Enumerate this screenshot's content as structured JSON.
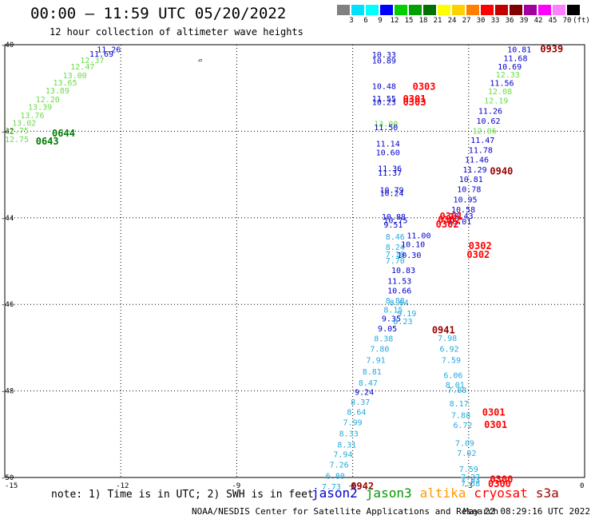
{
  "title": "00:00 – 11:59 UTC 05/20/2022",
  "subtitle": "12 hour collection of altimeter wave heights",
  "legend": {
    "unit": "(ft)",
    "bins": [
      {
        "label": "3",
        "color": "#808080"
      },
      {
        "label": "6",
        "color": "#00e0ff"
      },
      {
        "label": "9",
        "color": "#00ffff"
      },
      {
        "label": "12",
        "color": "#0000ff"
      },
      {
        "label": "15",
        "color": "#00d000"
      },
      {
        "label": "18",
        "color": "#00a000"
      },
      {
        "label": "21",
        "color": "#007000"
      },
      {
        "label": "24",
        "color": "#ffff00"
      },
      {
        "label": "27",
        "color": "#ffd000"
      },
      {
        "label": "30",
        "color": "#ff8000"
      },
      {
        "label": "33",
        "color": "#ff0000"
      },
      {
        "label": "36",
        "color": "#c00000"
      },
      {
        "label": "39",
        "color": "#800000"
      },
      {
        "label": "42",
        "color": "#a000a0"
      },
      {
        "label": "45",
        "color": "#ff00ff"
      },
      {
        "label": "70",
        "color": "#ff80ff"
      },
      {
        "label": "",
        "color": "#000000"
      }
    ]
  },
  "axes": {
    "x_ticks": [
      "-15",
      "-12",
      "-9",
      "-6",
      "-3",
      "0"
    ],
    "y_ticks": [
      "-40",
      "-42",
      "-44",
      "-46",
      "-48",
      "-50"
    ]
  },
  "labels": [
    {
      "lon": -12.62,
      "lat": -40.1,
      "t": "11.26",
      "c": "#0000cc"
    },
    {
      "lon": -12.81,
      "lat": -40.2,
      "t": "11.69",
      "c": "#0000cc"
    },
    {
      "lon": -13.05,
      "lat": -40.35,
      "t": "12.37",
      "c": "#66dd44"
    },
    {
      "lon": -13.3,
      "lat": -40.5,
      "t": "12.47",
      "c": "#66dd44"
    },
    {
      "lon": -13.5,
      "lat": -40.7,
      "t": "13.00",
      "c": "#66dd44"
    },
    {
      "lon": -13.75,
      "lat": -40.87,
      "t": "13.65",
      "c": "#66dd44"
    },
    {
      "lon": -13.95,
      "lat": -41.05,
      "t": "13.89",
      "c": "#66dd44"
    },
    {
      "lon": -14.2,
      "lat": -41.25,
      "t": "12.20",
      "c": "#66dd44"
    },
    {
      "lon": -14.4,
      "lat": -41.43,
      "t": "13.39",
      "c": "#66dd44"
    },
    {
      "lon": -14.6,
      "lat": -41.62,
      "t": "13.76",
      "c": "#66dd44"
    },
    {
      "lon": -14.81,
      "lat": -41.8,
      "t": "13.02",
      "c": "#66dd44"
    },
    {
      "lon": -15.0,
      "lat": -41.97,
      "t": "12.75",
      "c": "#66dd44"
    },
    {
      "lon": -15.0,
      "lat": -42.18,
      "t": "12.75",
      "c": "#66dd44"
    },
    {
      "lon": -5.5,
      "lat": -40.22,
      "t": "10.33",
      "c": "#0000cc"
    },
    {
      "lon": -5.5,
      "lat": -40.36,
      "t": "10.89",
      "c": "#0000cc"
    },
    {
      "lon": -5.5,
      "lat": -40.95,
      "t": "10.48",
      "c": "#0000cc"
    },
    {
      "lon": -5.5,
      "lat": -41.24,
      "t": "11.55",
      "c": "#0000cc"
    },
    {
      "lon": -5.5,
      "lat": -41.32,
      "t": "10.23",
      "c": "#0000cc"
    },
    {
      "lon": -5.45,
      "lat": -41.82,
      "t": "13.00",
      "c": "#66dd44"
    },
    {
      "lon": -5.45,
      "lat": -41.9,
      "t": "11.50",
      "c": "#0000cc"
    },
    {
      "lon": -5.4,
      "lat": -42.28,
      "t": "11.14",
      "c": "#0000cc"
    },
    {
      "lon": -5.4,
      "lat": -42.48,
      "t": "10.60",
      "c": "#0000cc"
    },
    {
      "lon": -5.35,
      "lat": -42.85,
      "t": "11.36",
      "c": "#0000cc"
    },
    {
      "lon": -5.35,
      "lat": -42.95,
      "t": "11.37",
      "c": "#0000cc"
    },
    {
      "lon": -5.3,
      "lat": -43.35,
      "t": "10.79",
      "c": "#0000cc"
    },
    {
      "lon": -5.3,
      "lat": -43.42,
      "t": "10.24",
      "c": "#0000cc"
    },
    {
      "lon": -5.25,
      "lat": -43.97,
      "t": "10.88",
      "c": "#0000cc"
    },
    {
      "lon": -5.2,
      "lat": -44.05,
      "t": "10.75",
      "c": "#0000cc"
    },
    {
      "lon": -5.2,
      "lat": -44.15,
      "t": "9.51",
      "c": "#0000cc"
    },
    {
      "lon": -5.15,
      "lat": -44.43,
      "t": "8.46",
      "c": "#22aadd"
    },
    {
      "lon": -5.15,
      "lat": -44.67,
      "t": "8.24",
      "c": "#22aadd"
    },
    {
      "lon": -5.15,
      "lat": -44.83,
      "t": "7.10",
      "c": "#22aadd"
    },
    {
      "lon": -5.15,
      "lat": -44.98,
      "t": "7.70",
      "c": "#22aadd"
    },
    {
      "lon": -4.6,
      "lat": -44.4,
      "t": "11.00",
      "c": "#0000cc"
    },
    {
      "lon": -4.75,
      "lat": -44.6,
      "t": "10.10",
      "c": "#0000cc"
    },
    {
      "lon": -4.85,
      "lat": -44.85,
      "t": "10.30",
      "c": "#0000cc"
    },
    {
      "lon": -5.0,
      "lat": -45.2,
      "t": "10.83",
      "c": "#0000cc"
    },
    {
      "lon": -5.1,
      "lat": -45.45,
      "t": "11.53",
      "c": "#0000cc"
    },
    {
      "lon": -5.1,
      "lat": -45.67,
      "t": "10.66",
      "c": "#0000cc"
    },
    {
      "lon": -5.15,
      "lat": -45.9,
      "t": "8.88",
      "c": "#22aadd"
    },
    {
      "lon": -5.05,
      "lat": -45.95,
      "t": "8.64",
      "c": "#22aadd"
    },
    {
      "lon": -5.2,
      "lat": -46.12,
      "t": "8.15",
      "c": "#22aadd"
    },
    {
      "lon": -4.85,
      "lat": -46.2,
      "t": "9.19",
      "c": "#22aadd"
    },
    {
      "lon": -5.25,
      "lat": -46.32,
      "t": "9.35",
      "c": "#0000cc"
    },
    {
      "lon": -4.95,
      "lat": -46.38,
      "t": "8.23",
      "c": "#22aadd"
    },
    {
      "lon": -5.35,
      "lat": -46.55,
      "t": "9.05",
      "c": "#0000cc"
    },
    {
      "lon": -5.45,
      "lat": -46.78,
      "t": "8.38",
      "c": "#22aadd"
    },
    {
      "lon": -5.55,
      "lat": -47.02,
      "t": "7.80",
      "c": "#22aadd"
    },
    {
      "lon": -5.65,
      "lat": -47.28,
      "t": "7.91",
      "c": "#22aadd"
    },
    {
      "lon": -5.75,
      "lat": -47.55,
      "t": "8.81",
      "c": "#22aadd"
    },
    {
      "lon": -5.85,
      "lat": -47.8,
      "t": "8.47",
      "c": "#22aadd"
    },
    {
      "lon": -5.95,
      "lat": -48.02,
      "t": "9.24",
      "c": "#0000cc"
    },
    {
      "lon": -6.05,
      "lat": -48.25,
      "t": "8.37",
      "c": "#22aadd"
    },
    {
      "lon": -6.15,
      "lat": -48.48,
      "t": "8.64",
      "c": "#22aadd"
    },
    {
      "lon": -6.25,
      "lat": -48.72,
      "t": "7.99",
      "c": "#22aadd"
    },
    {
      "lon": -6.35,
      "lat": -48.98,
      "t": "8.33",
      "c": "#22aadd"
    },
    {
      "lon": -6.4,
      "lat": -49.23,
      "t": "8.31",
      "c": "#22aadd"
    },
    {
      "lon": -6.5,
      "lat": -49.46,
      "t": "7.94",
      "c": "#22aadd"
    },
    {
      "lon": -6.6,
      "lat": -49.7,
      "t": "7.26",
      "c": "#22aadd"
    },
    {
      "lon": -6.7,
      "lat": -49.95,
      "t": "6.80",
      "c": "#22aadd"
    },
    {
      "lon": -6.8,
      "lat": -50.2,
      "t": "7.73",
      "c": "#22aadd"
    },
    {
      "lon": -3.8,
      "lat": -46.77,
      "t": "7.98",
      "c": "#22aadd"
    },
    {
      "lon": -3.75,
      "lat": -47.02,
      "t": "6.92",
      "c": "#22aadd"
    },
    {
      "lon": -3.7,
      "lat": -47.28,
      "t": "7.59",
      "c": "#22aadd"
    },
    {
      "lon": -3.65,
      "lat": -47.63,
      "t": "6.06",
      "c": "#22aadd"
    },
    {
      "lon": -3.6,
      "lat": -47.85,
      "t": "8.01",
      "c": "#22aadd"
    },
    {
      "lon": -3.55,
      "lat": -47.97,
      "t": "7.88",
      "c": "#22aadd"
    },
    {
      "lon": -3.5,
      "lat": -48.28,
      "t": "8.17",
      "c": "#22aadd"
    },
    {
      "lon": -3.45,
      "lat": -48.55,
      "t": "7.88",
      "c": "#22aadd"
    },
    {
      "lon": -3.4,
      "lat": -48.78,
      "t": "6.72",
      "c": "#22aadd"
    },
    {
      "lon": -3.35,
      "lat": -49.2,
      "t": "7.09",
      "c": "#22aadd"
    },
    {
      "lon": -3.3,
      "lat": -49.43,
      "t": "7.02",
      "c": "#22aadd"
    },
    {
      "lon": -3.25,
      "lat": -49.8,
      "t": "7.59",
      "c": "#22aadd"
    },
    {
      "lon": -3.2,
      "lat": -49.98,
      "t": "7.27",
      "c": "#22aadd"
    },
    {
      "lon": -3.2,
      "lat": -50.05,
      "t": "7.83",
      "c": "#22aadd"
    },
    {
      "lon": -3.2,
      "lat": -50.13,
      "t": "7.58",
      "c": "#22aadd"
    },
    {
      "lon": -2.0,
      "lat": -40.1,
      "t": "10.81",
      "c": "#0000cc"
    },
    {
      "lon": -2.1,
      "lat": -40.3,
      "t": "11.68",
      "c": "#0000cc"
    },
    {
      "lon": -2.25,
      "lat": -40.5,
      "t": "10.69",
      "c": "#0000cc"
    },
    {
      "lon": -2.3,
      "lat": -40.68,
      "t": "12.33",
      "c": "#66dd44"
    },
    {
      "lon": -2.45,
      "lat": -40.88,
      "t": "11.56",
      "c": "#0000cc"
    },
    {
      "lon": -2.5,
      "lat": -41.07,
      "t": "12.08",
      "c": "#66dd44"
    },
    {
      "lon": -2.6,
      "lat": -41.28,
      "t": "12.19",
      "c": "#66dd44"
    },
    {
      "lon": -2.75,
      "lat": -41.52,
      "t": "11.26",
      "c": "#0000cc"
    },
    {
      "lon": -2.8,
      "lat": -41.75,
      "t": "10.62",
      "c": "#0000cc"
    },
    {
      "lon": -2.9,
      "lat": -41.98,
      "t": "12.06",
      "c": "#66dd44"
    },
    {
      "lon": -2.95,
      "lat": -42.2,
      "t": "11.47",
      "c": "#0000cc"
    },
    {
      "lon": -3.0,
      "lat": -42.43,
      "t": "11.78",
      "c": "#0000cc"
    },
    {
      "lon": -3.1,
      "lat": -42.65,
      "t": "11.46",
      "c": "#0000cc"
    },
    {
      "lon": -3.15,
      "lat": -42.88,
      "t": "11.29",
      "c": "#0000cc"
    },
    {
      "lon": -3.25,
      "lat": -43.1,
      "t": "10.81",
      "c": "#0000cc"
    },
    {
      "lon": -3.3,
      "lat": -43.33,
      "t": "10.78",
      "c": "#0000cc"
    },
    {
      "lon": -3.4,
      "lat": -43.57,
      "t": "10.95",
      "c": "#0000cc"
    },
    {
      "lon": -3.45,
      "lat": -43.8,
      "t": "10.58",
      "c": "#0000cc"
    },
    {
      "lon": -3.5,
      "lat": -43.95,
      "t": "10.43",
      "c": "#0000cc"
    },
    {
      "lon": -3.55,
      "lat": -44.08,
      "t": "10.01",
      "c": "#0000cc"
    }
  ],
  "times": [
    {
      "lon": -13.78,
      "lat": -42.05,
      "t": "0644",
      "c": "#007a00"
    },
    {
      "lon": -14.2,
      "lat": -42.23,
      "t": "0643",
      "c": "#007a00"
    },
    {
      "lon": -4.45,
      "lat": -40.97,
      "t": "0303",
      "c": "#ff0000"
    },
    {
      "lon": -4.7,
      "lat": -41.25,
      "t": "0301",
      "c": "#ff0000"
    },
    {
      "lon": -4.7,
      "lat": -41.33,
      "t": "0303",
      "c": "#ff0000"
    },
    {
      "lon": -3.75,
      "lat": -43.97,
      "t": "0301",
      "c": "#ff0000"
    },
    {
      "lon": -3.8,
      "lat": -44.05,
      "t": "0302",
      "c": "#ff0000"
    },
    {
      "lon": -3.85,
      "lat": -44.15,
      "t": "0302",
      "c": "#ff0000"
    },
    {
      "lon": -3.0,
      "lat": -44.65,
      "t": "0302",
      "c": "#ff0000"
    },
    {
      "lon": -3.05,
      "lat": -44.85,
      "t": "0302",
      "c": "#ff0000"
    },
    {
      "lon": -3.95,
      "lat": -46.6,
      "t": "0941",
      "c": "#990000"
    },
    {
      "lon": -2.45,
      "lat": -42.92,
      "t": "0940",
      "c": "#990000"
    },
    {
      "lon": -1.15,
      "lat": -40.1,
      "t": "0939",
      "c": "#990000"
    },
    {
      "lon": -2.65,
      "lat": -48.5,
      "t": "0301",
      "c": "#ff0000"
    },
    {
      "lon": -2.6,
      "lat": -48.78,
      "t": "0301",
      "c": "#ff0000"
    },
    {
      "lon": -2.45,
      "lat": -50.05,
      "t": "0300",
      "c": "#ff0000"
    },
    {
      "lon": -2.5,
      "lat": -50.15,
      "t": "0300",
      "c": "#ff0000"
    },
    {
      "lon": -6.05,
      "lat": -50.2,
      "t": "0942",
      "c": "#990000"
    }
  ],
  "land_marker": "▱",
  "note": "note: 1) Time is in UTC; 2) SWH is in feet",
  "satellites": [
    {
      "name": "jason2",
      "color": "#0000cc"
    },
    {
      "name": "jason3",
      "color": "#009900"
    },
    {
      "name": "altika",
      "color": "#ff9900"
    },
    {
      "name": "cryosat",
      "color": "#ff0000"
    },
    {
      "name": "s3a",
      "color": "#990000"
    }
  ],
  "footer_left": "NOAA/NESDIS Center for Satellite Applications and Research",
  "footer_right": "May 22 08:29:16 UTC 2022"
}
